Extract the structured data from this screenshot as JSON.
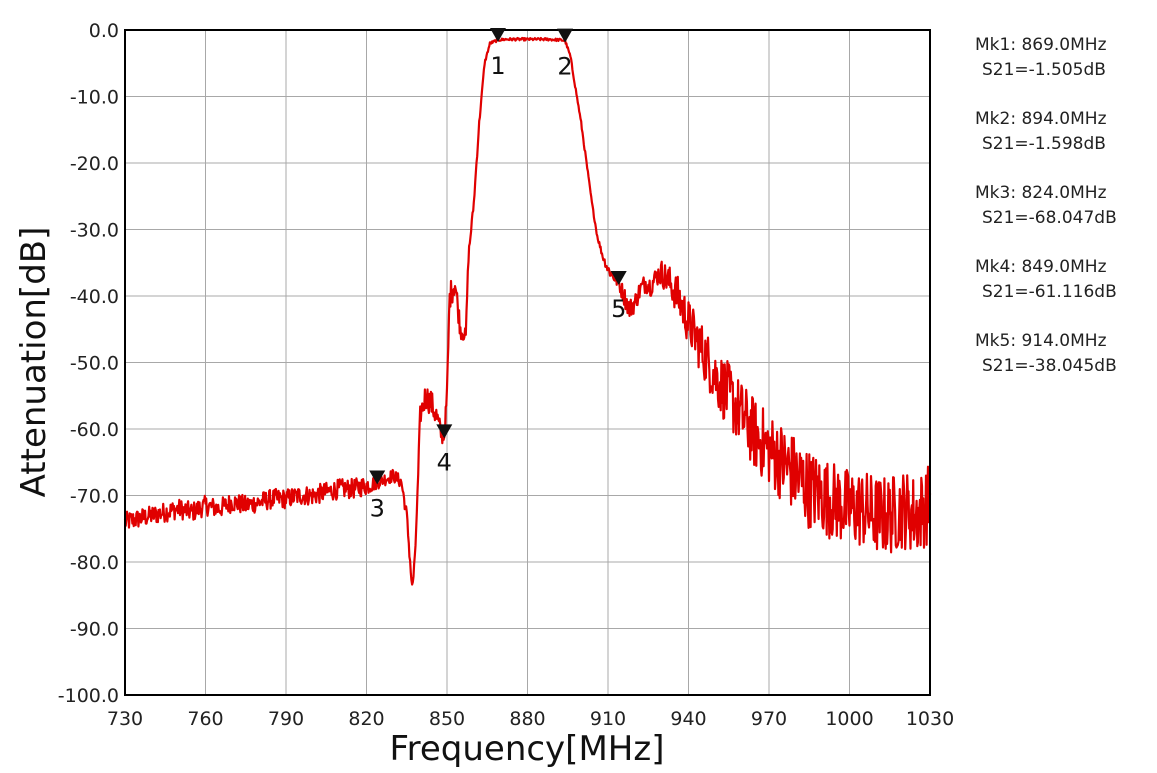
{
  "chart_data": {
    "type": "line",
    "xlabel": "Frequency[MHz]",
    "ylabel": "Attenuation[dB]",
    "xlim": [
      730,
      1030
    ],
    "ylim": [
      -100,
      0
    ],
    "x_ticks": [
      "730",
      "760",
      "790",
      "820",
      "850",
      "880",
      "910",
      "940",
      "970",
      "1000",
      "1030"
    ],
    "y_ticks": [
      "0.0",
      "-10.0",
      "-20.0",
      "-30.0",
      "-40.0",
      "-50.0",
      "-60.0",
      "-70.0",
      "-80.0",
      "-90.0",
      "-100.0"
    ],
    "grid": true,
    "series_color": "#e00000",
    "series": [
      {
        "x": [
          730,
          735,
          740,
          745,
          750,
          755,
          760,
          765,
          770,
          775,
          780,
          785,
          790,
          795,
          800,
          805,
          810,
          815,
          820,
          824,
          827,
          830,
          833,
          835,
          837,
          838,
          839,
          840,
          842,
          844,
          846,
          848,
          849,
          850,
          851,
          853,
          855,
          857,
          858,
          860,
          862,
          864,
          866,
          869,
          872,
          876,
          880,
          884,
          888,
          892,
          894,
          896,
          898,
          900,
          902,
          904,
          906,
          908,
          910,
          912,
          914,
          916,
          918,
          920,
          922,
          924,
          926,
          928,
          930,
          933,
          936,
          940,
          945,
          950,
          955,
          960,
          965,
          970,
          975,
          980,
          985,
          990,
          995,
          1000,
          1005,
          1010,
          1015,
          1020,
          1025,
          1030
        ],
        "y": [
          -74,
          -73.5,
          -73,
          -72.5,
          -72,
          -72.5,
          -71.5,
          -72,
          -71,
          -71.5,
          -71,
          -70.5,
          -70.5,
          -70,
          -70,
          -69.5,
          -69,
          -69,
          -68.5,
          -68.047,
          -67.5,
          -67,
          -68,
          -73,
          -84,
          -80,
          -70,
          -58,
          -55,
          -56,
          -58,
          -61,
          -61.116,
          -55,
          -40,
          -38,
          -45,
          -46,
          -34,
          -26,
          -14,
          -5,
          -2,
          -1.505,
          -1.4,
          -1.4,
          -1.4,
          -1.4,
          -1.4,
          -1.5,
          -1.598,
          -4,
          -9,
          -14,
          -20,
          -26,
          -31,
          -34,
          -36,
          -37,
          -38.045,
          -40,
          -42,
          -41,
          -39,
          -38,
          -38.5,
          -37,
          -36.5,
          -38,
          -40,
          -44,
          -48,
          -52,
          -55,
          -58,
          -61,
          -63,
          -65,
          -67,
          -69,
          -70,
          -71,
          -72,
          -72,
          -73,
          -73,
          -72,
          -73,
          -71
        ],
        "noise": [
          1.5,
          1.5,
          1.5,
          1.5,
          1.5,
          1.5,
          1.5,
          1.5,
          1.5,
          1.5,
          1.5,
          1.5,
          1.5,
          1.5,
          1.5,
          1.5,
          1.5,
          1.5,
          1.5,
          1,
          1,
          1,
          1,
          1,
          1,
          1,
          1,
          1.5,
          2,
          2,
          2,
          1.5,
          1,
          2,
          2,
          2,
          1.5,
          1,
          1,
          0.5,
          0.5,
          0.3,
          0.2,
          0.2,
          0.2,
          0.2,
          0.2,
          0.2,
          0.2,
          0.2,
          0.2,
          0.3,
          0.3,
          0.3,
          0.3,
          0.3,
          0.3,
          0.5,
          0.8,
          1,
          1,
          1.5,
          1.5,
          1.5,
          1.5,
          1.5,
          1.5,
          1.5,
          2,
          2.5,
          3,
          3.5,
          4,
          4.5,
          5,
          5,
          5.5,
          5.5,
          6,
          6,
          6,
          6,
          6,
          6,
          6,
          6,
          6,
          6,
          6,
          6
        ]
      }
    ],
    "markers": [
      {
        "id": "1",
        "x": 869,
        "y": -1.505,
        "readout_freq": "Mk1:  869.0MHz",
        "readout_val": "S21=-1.505dB"
      },
      {
        "id": "2",
        "x": 894,
        "y": -1.598,
        "readout_freq": "Mk2:  894.0MHz",
        "readout_val": "S21=-1.598dB"
      },
      {
        "id": "3",
        "x": 824,
        "y": -68.047,
        "readout_freq": "Mk3:  824.0MHz",
        "readout_val": "S21=-68.047dB"
      },
      {
        "id": "4",
        "x": 849,
        "y": -61.116,
        "readout_freq": "Mk4:  849.0MHz",
        "readout_val": "S21=-61.116dB"
      },
      {
        "id": "5",
        "x": 914,
        "y": -38.045,
        "readout_freq": "Mk5:  914.0MHz",
        "readout_val": "S21=-38.045dB"
      }
    ],
    "marker_color": "#111111"
  }
}
